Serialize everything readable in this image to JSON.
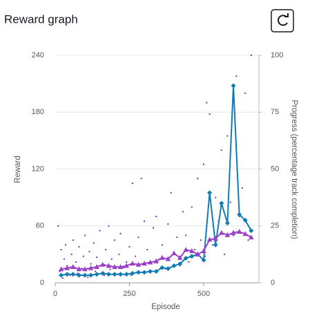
{
  "chart_data": {
    "type": "line",
    "title": "Reward graph",
    "x_label": "Episode",
    "y_label": "Reward",
    "y2_label": "Progress (percentage track completion)",
    "xlim": [
      0,
      686
    ],
    "xticks": [
      0,
      250,
      500
    ],
    "ylim": [
      0,
      240
    ],
    "yticks": [
      0,
      60,
      120,
      180,
      240
    ],
    "y2lim": [
      0,
      100
    ],
    "y2ticks": [
      0,
      25,
      50,
      75,
      100
    ],
    "grid": true,
    "x": [
      20,
      40,
      60,
      80,
      100,
      120,
      140,
      160,
      180,
      200,
      220,
      240,
      260,
      280,
      300,
      320,
      340,
      360,
      380,
      400,
      420,
      440,
      460,
      480,
      500,
      520,
      540,
      560,
      580,
      600,
      620,
      640,
      660
    ],
    "series": [
      {
        "type": "scatter",
        "color": "#7d2fb5",
        "x": [
          10,
          15,
          20,
          25,
          30,
          35,
          40,
          50,
          55,
          60,
          70,
          75,
          80,
          90,
          95,
          100,
          110,
          115,
          120,
          130,
          135,
          140,
          150,
          160,
          165,
          170,
          180,
          185,
          190,
          200,
          210,
          215,
          220,
          230,
          240,
          250,
          255,
          260,
          270,
          280,
          290,
          295,
          300,
          310,
          320,
          330,
          340,
          350,
          360,
          370,
          380,
          390,
          400,
          410,
          420,
          430,
          440,
          450,
          460,
          470,
          480,
          490,
          500,
          505,
          510,
          520,
          530,
          540,
          550,
          560,
          570,
          580,
          590,
          600,
          610,
          620,
          630,
          640,
          650,
          660
        ],
        "values": [
          60,
          12,
          35,
          5,
          25,
          40,
          18,
          8,
          30,
          45,
          22,
          10,
          38,
          15,
          28,
          50,
          6,
          33,
          20,
          42,
          12,
          27,
          55,
          18,
          8,
          35,
          60,
          14,
          25,
          45,
          9,
          30,
          52,
          16,
          22,
          38,
          8,
          105,
          28,
          48,
          110,
          20,
          65,
          35,
          12,
          58,
          70,
          25,
          40,
          15,
          62,
          95,
          30,
          48,
          18,
          75,
          50,
          22,
          80,
          35,
          110,
          45,
          125,
          28,
          190,
          178,
          40,
          90,
          65,
          140,
          30,
          155,
          85,
          50,
          218,
          70,
          100,
          200,
          45,
          240
        ]
      },
      {
        "type": "line",
        "marker": "diamond",
        "color": "#0f7bb5",
        "values": [
          8,
          9,
          9,
          8,
          8,
          8,
          9,
          10,
          9,
          9,
          9,
          9,
          10,
          11,
          11,
          12,
          12,
          16,
          15,
          18,
          20,
          26,
          28,
          30,
          24,
          95,
          40,
          84,
          63,
          208,
          72,
          66,
          55
        ]
      },
      {
        "type": "line",
        "marker": "triangle",
        "color": "#9b3fc8",
        "axis": "y2",
        "values": [
          6,
          6.5,
          7,
          6,
          6,
          6.5,
          7,
          8,
          7.5,
          7,
          7,
          7.5,
          8.5,
          8,
          8.5,
          9,
          9.5,
          11,
          10.5,
          13,
          11,
          14.5,
          14,
          12.5,
          14,
          19,
          19.5,
          22,
          21,
          22,
          22.5,
          21.5,
          20
        ]
      }
    ]
  }
}
